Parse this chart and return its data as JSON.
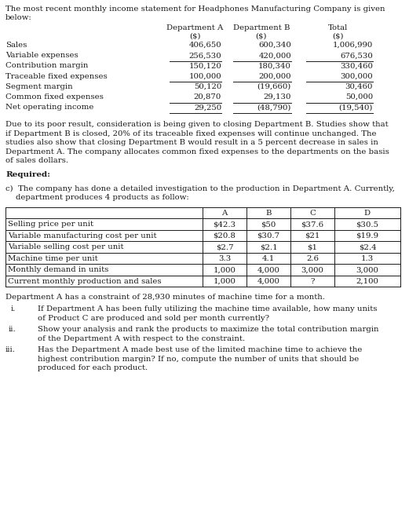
{
  "title_line1": "The most recent monthly income statement for Headphones Manufacturing Company is given",
  "title_line2": "below:",
  "col_a_header": "Department A",
  "col_b_header": "Department B",
  "col_total_header": "Total",
  "dollar_sign": "($)",
  "income_rows": [
    [
      "Sales",
      "406,650",
      "600,340",
      "1,006,990",
      false
    ],
    [
      "Variable expenses",
      "256,530",
      "420,000",
      "676,530",
      true
    ],
    [
      "Contribution margin",
      "150,120",
      "180,340",
      "330,460",
      false
    ],
    [
      "Traceable fixed expenses",
      "100,000",
      "200,000",
      "300,000",
      true
    ],
    [
      "Segment margin",
      "50,120",
      "(19,660)",
      "30,460",
      false
    ],
    [
      "Common fixed expenses",
      "20,870",
      "29,130",
      "50,000",
      true
    ],
    [
      "Net operating income",
      "29,250",
      "(48,790)",
      "(19,540)",
      true
    ]
  ],
  "para1_lines": [
    "Due to its poor result, consideration is being given to closing Department B. Studies show that",
    "if Department B is closed, 20% of its traceable fixed expenses will continue unchanged. The",
    "studies also show that closing Department B would result in a 5 percent decrease in sales in",
    "Department A. The company allocates common fixed expenses to the departments on the basis",
    "of sales dollars."
  ],
  "required_label": "Required:",
  "part_c_lines": [
    "c)  The company has done a detailed investigation to the production in Department A. Currently,",
    "    department produces 4 products as follow:"
  ],
  "prod_headers": [
    "A",
    "B",
    "C",
    "D"
  ],
  "prod_rows": [
    [
      "Selling price per unit",
      "$42.3",
      "$50",
      "$37.6",
      "$30.5"
    ],
    [
      "Variable manufacturing cost per unit",
      "$20.8",
      "$30.7",
      "$21",
      "$19.9"
    ],
    [
      "Variable selling cost per unit",
      "$2.7",
      "$2.1",
      "$1",
      "$2.4"
    ],
    [
      "Machine time per unit",
      "3.3",
      "4.1",
      "2.6",
      "1.3"
    ],
    [
      "Monthly demand in units",
      "1,000",
      "4,000",
      "3,000",
      "3,000"
    ],
    [
      "Current monthly production and sales",
      "1,000",
      "4,000",
      "?",
      "2,100"
    ]
  ],
  "constraint_text": "Department A has a constraint of 28,930 minutes of machine time for a month.",
  "q_labels": [
    "i.",
    "ii.",
    "iii."
  ],
  "q_texts": [
    [
      "If Department A has been fully utilizing the machine time available, how many units",
      "of Product C are produced and sold per month currently?"
    ],
    [
      "Show your analysis and rank the products to maximize the total contribution margin",
      "of the Department A with respect to the constraint."
    ],
    [
      "Has the Department A made best use of the limited machine time to achieve the",
      "highest contribution margin? If no, compute the number of units that should be",
      "produced for each product."
    ]
  ],
  "bg_color": "#ffffff",
  "text_color": "#1a1a1a",
  "fs": 7.3,
  "fs_bold": 7.5
}
